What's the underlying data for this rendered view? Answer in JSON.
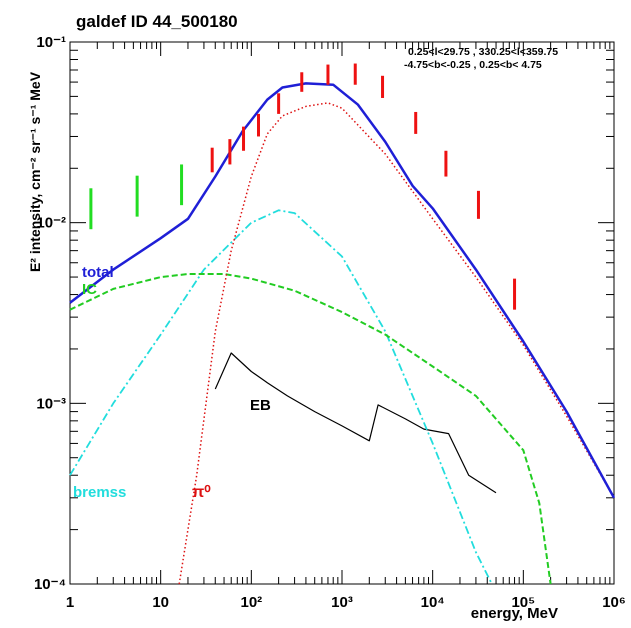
{
  "chart_data": {
    "type": "line",
    "title": "galdef ID 44_500180",
    "xlabel": "energy, MeV",
    "ylabel": "E² intensity, cm⁻² sr⁻¹ s⁻¹ MeV",
    "x_scale": "log",
    "y_scale": "log",
    "xlim": [
      1,
      1000000
    ],
    "ylim": [
      0.0001,
      0.1
    ],
    "x_tick_labels": [
      "1",
      "10",
      "10²",
      "10³",
      "10⁴",
      "10⁵",
      "10⁶"
    ],
    "y_tick_labels": [
      "10⁻⁴",
      "10⁻³",
      "10⁻²",
      "10⁻¹"
    ],
    "region_text": [
      "0.25<l<29.75 , 330.25<l<359.75",
      "-4.75<b<-0.25 ,  0.25<b< 4.75"
    ],
    "colors": {
      "total": "#1f1fd6",
      "ic": "#22cc22",
      "bremss": "#22dddd",
      "pi0": "#dd1111",
      "eb": "#000000",
      "data": "#ee1111",
      "data_low": "#22dd22"
    },
    "series": [
      {
        "name": "total",
        "style": "solid",
        "x": [
          1,
          3,
          10,
          20,
          40,
          80,
          150,
          220,
          400,
          800,
          1500,
          3000,
          6000,
          10000,
          30000,
          100000,
          300000,
          1000000
        ],
        "y": [
          0.0036,
          0.0055,
          0.0082,
          0.0105,
          0.018,
          0.032,
          0.048,
          0.056,
          0.059,
          0.058,
          0.045,
          0.028,
          0.016,
          0.012,
          0.0055,
          0.0022,
          0.0009,
          0.0003
        ]
      },
      {
        "name": "IC",
        "style": "dashed",
        "x": [
          1,
          3,
          10,
          20,
          50,
          100,
          300,
          1000,
          3000,
          10000,
          30000,
          100000,
          150000,
          200000
        ],
        "y": [
          0.0033,
          0.0043,
          0.005,
          0.0052,
          0.0052,
          0.0049,
          0.0042,
          0.0032,
          0.0024,
          0.0016,
          0.0011,
          0.00055,
          0.00028,
          0.0001
        ]
      },
      {
        "name": "bremss",
        "style": "dashdot",
        "x": [
          1,
          3,
          10,
          30,
          100,
          200,
          300,
          1000,
          3000,
          10000,
          30000,
          45000
        ],
        "y": [
          0.0004,
          0.001,
          0.0024,
          0.0055,
          0.01,
          0.0117,
          0.0113,
          0.0065,
          0.0025,
          0.0006,
          0.00015,
          0.0001
        ]
      },
      {
        "name": "π⁰",
        "style": "dotted",
        "x": [
          16,
          25,
          40,
          60,
          100,
          150,
          220,
          400,
          700,
          1000,
          3000,
          10000,
          30000,
          100000,
          300000,
          1000000
        ],
        "y": [
          0.0001,
          0.0004,
          0.0025,
          0.007,
          0.018,
          0.031,
          0.039,
          0.044,
          0.046,
          0.043,
          0.024,
          0.0105,
          0.005,
          0.0021,
          0.00085,
          0.0003
        ]
      },
      {
        "name": "EB",
        "style": "solid",
        "x": [
          40,
          60,
          100,
          150,
          250,
          500,
          1000,
          2000,
          2500,
          5000,
          8000,
          15000,
          25000,
          50000
        ],
        "y": [
          0.0012,
          0.0019,
          0.0015,
          0.0013,
          0.0011,
          0.0009,
          0.00075,
          0.00062,
          0.00098,
          0.00082,
          0.00072,
          0.00068,
          0.0004,
          0.00032
        ]
      }
    ],
    "data_points": [
      {
        "x": 1.7,
        "ylow": 0.0092,
        "yhigh": 0.0155,
        "group": "low"
      },
      {
        "x": 5.5,
        "ylow": 0.0108,
        "yhigh": 0.0182,
        "group": "low"
      },
      {
        "x": 17,
        "ylow": 0.0125,
        "yhigh": 0.021,
        "group": "low"
      },
      {
        "x": 37,
        "ylow": 0.019,
        "yhigh": 0.026,
        "group": "high"
      },
      {
        "x": 58,
        "ylow": 0.021,
        "yhigh": 0.029,
        "group": "high"
      },
      {
        "x": 82,
        "ylow": 0.025,
        "yhigh": 0.034,
        "group": "high"
      },
      {
        "x": 120,
        "ylow": 0.03,
        "yhigh": 0.04,
        "group": "high"
      },
      {
        "x": 200,
        "ylow": 0.04,
        "yhigh": 0.052,
        "group": "high"
      },
      {
        "x": 360,
        "ylow": 0.053,
        "yhigh": 0.068,
        "group": "high"
      },
      {
        "x": 700,
        "ylow": 0.058,
        "yhigh": 0.075,
        "group": "high"
      },
      {
        "x": 1400,
        "ylow": 0.058,
        "yhigh": 0.076,
        "group": "high"
      },
      {
        "x": 2800,
        "ylow": 0.049,
        "yhigh": 0.065,
        "group": "high"
      },
      {
        "x": 6500,
        "ylow": 0.031,
        "yhigh": 0.041,
        "group": "high"
      },
      {
        "x": 14000,
        "ylow": 0.018,
        "yhigh": 0.025,
        "group": "high"
      },
      {
        "x": 32000,
        "ylow": 0.0105,
        "yhigh": 0.015,
        "group": "high"
      },
      {
        "x": 80000,
        "ylow": 0.0033,
        "yhigh": 0.0049,
        "group": "high"
      }
    ],
    "labels": {
      "total": "total",
      "ic": "IC",
      "bremss": "bremss",
      "pi0": "π⁰",
      "eb": "EB"
    }
  }
}
